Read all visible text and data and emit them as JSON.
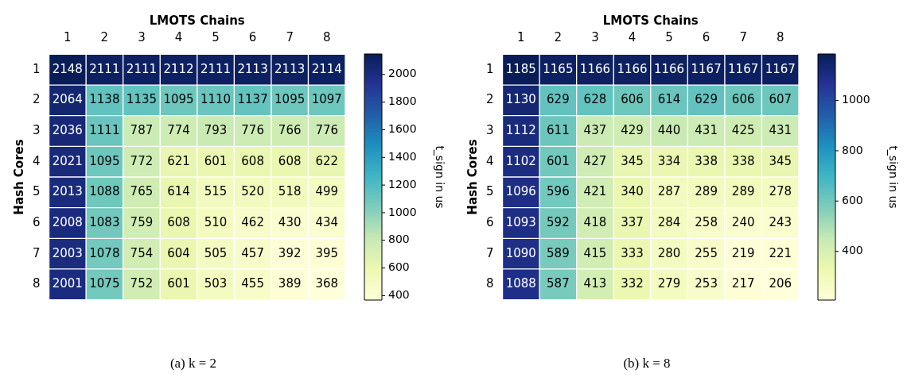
{
  "chart_data": [
    {
      "type": "heatmap",
      "xlabel": "LMOTS Chains",
      "ylabel": "Hash Cores",
      "clabel": "t_sign in us",
      "annotations": [
        "(a) k = 2"
      ],
      "categories": [
        "1",
        "2",
        "3",
        "4",
        "5",
        "6",
        "7",
        "8"
      ],
      "y_categories": [
        "1",
        "2",
        "3",
        "4",
        "5",
        "6",
        "7",
        "8"
      ],
      "cells": [
        [
          2148,
          2111,
          2111,
          2112,
          2111,
          2113,
          2113,
          2114
        ],
        [
          2064,
          1138,
          1135,
          1095,
          1110,
          1137,
          1095,
          1097
        ],
        [
          2036,
          1111,
          787,
          774,
          793,
          776,
          766,
          776
        ],
        [
          2021,
          1095,
          772,
          621,
          601,
          608,
          608,
          622
        ],
        [
          2013,
          1088,
          765,
          614,
          515,
          520,
          518,
          499
        ],
        [
          2008,
          1083,
          759,
          608,
          510,
          462,
          430,
          434
        ],
        [
          2003,
          1078,
          754,
          604,
          505,
          457,
          392,
          395
        ],
        [
          2001,
          1075,
          752,
          601,
          503,
          455,
          389,
          368
        ]
      ],
      "clim": [
        368,
        2148
      ],
      "cticks": [
        400,
        600,
        800,
        1000,
        1200,
        1400,
        1600,
        1800,
        2000
      ],
      "data_labels": true
    },
    {
      "type": "heatmap",
      "xlabel": "LMOTS Chains",
      "ylabel": "Hash Cores",
      "clabel": "t_sign in us",
      "annotations": [
        "(b) k = 8"
      ],
      "categories": [
        "1",
        "2",
        "3",
        "4",
        "5",
        "6",
        "7",
        "8"
      ],
      "y_categories": [
        "1",
        "2",
        "3",
        "4",
        "5",
        "6",
        "7",
        "8"
      ],
      "cells": [
        [
          1185,
          1165,
          1166,
          1166,
          1166,
          1167,
          1167,
          1167
        ],
        [
          1130,
          629,
          628,
          606,
          614,
          629,
          606,
          607
        ],
        [
          1112,
          611,
          437,
          429,
          440,
          431,
          425,
          431
        ],
        [
          1102,
          601,
          427,
          345,
          334,
          338,
          338,
          345
        ],
        [
          1096,
          596,
          421,
          340,
          287,
          289,
          289,
          278
        ],
        [
          1093,
          592,
          418,
          337,
          284,
          258,
          240,
          243
        ],
        [
          1090,
          589,
          415,
          333,
          280,
          255,
          219,
          221
        ],
        [
          1088,
          587,
          413,
          332,
          279,
          253,
          217,
          206
        ]
      ],
      "clim": [
        206,
        1185
      ],
      "cticks": [
        400,
        600,
        800,
        1000
      ],
      "data_labels": true
    }
  ]
}
